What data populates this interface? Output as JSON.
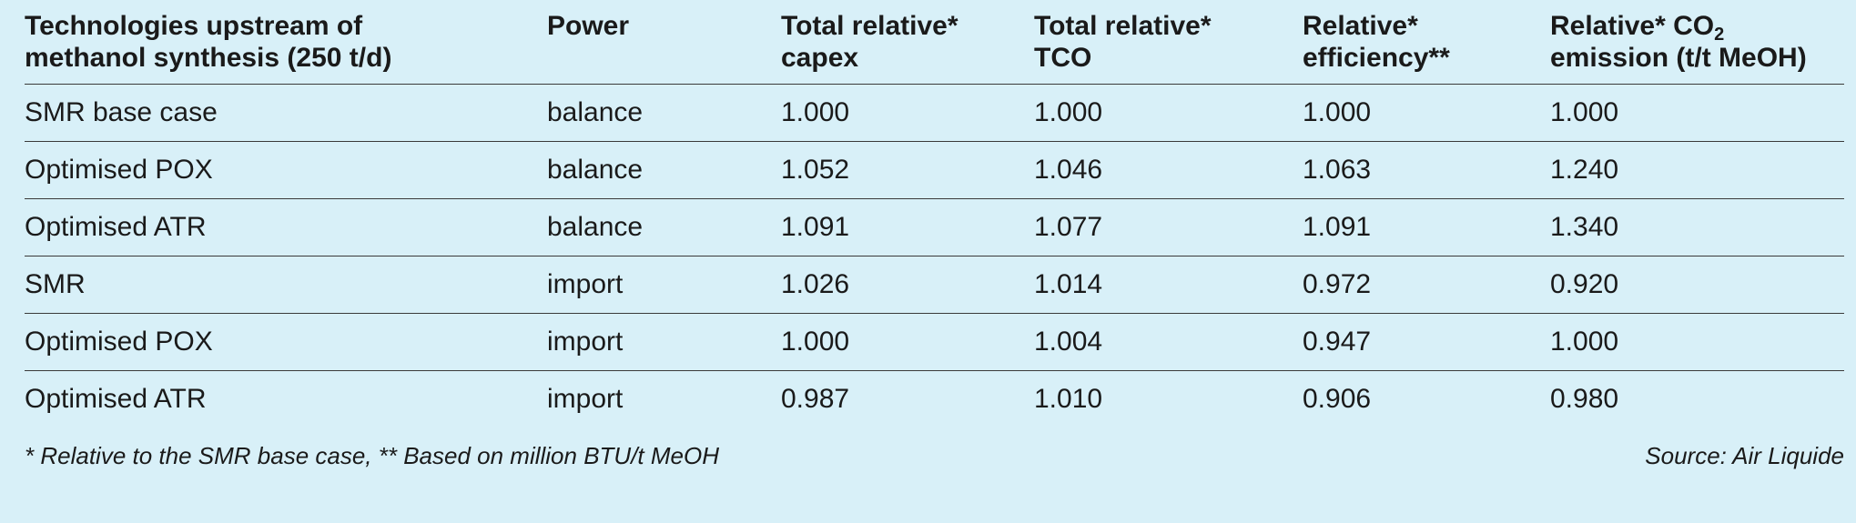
{
  "table": {
    "headers": [
      {
        "line1": "Technologies upstream of",
        "line2": "methanol synthesis (250 t/d)"
      },
      {
        "line1": "Power",
        "line2": ""
      },
      {
        "line1": "Total relative*",
        "line2": "capex"
      },
      {
        "line1": "Total relative*",
        "line2": "TCO"
      },
      {
        "line1": "Relative*",
        "line2": "efficiency**"
      },
      {
        "line1_pre": "Relative* CO",
        "line1_sub": "2",
        "line2": "emission (t/t MeOH)"
      }
    ],
    "rows": [
      [
        "SMR base case",
        "balance",
        "1.000",
        "1.000",
        "1.000",
        "1.000"
      ],
      [
        "Optimised POX",
        "balance",
        "1.052",
        "1.046",
        "1.063",
        "1.240"
      ],
      [
        "Optimised ATR",
        "balance",
        "1.091",
        "1.077",
        "1.091",
        "1.340"
      ],
      [
        "SMR",
        "import",
        "1.026",
        "1.014",
        "0.972",
        "0.920"
      ],
      [
        "Optimised POX",
        "import",
        "1.000",
        "1.004",
        "0.947",
        "1.000"
      ],
      [
        "Optimised ATR",
        "import",
        "0.987",
        "1.010",
        "0.906",
        "0.980"
      ]
    ]
  },
  "footer": {
    "note": "* Relative to the SMR base case, ** Based on million BTU/t MeOH",
    "source": "Source: Air Liquide"
  }
}
